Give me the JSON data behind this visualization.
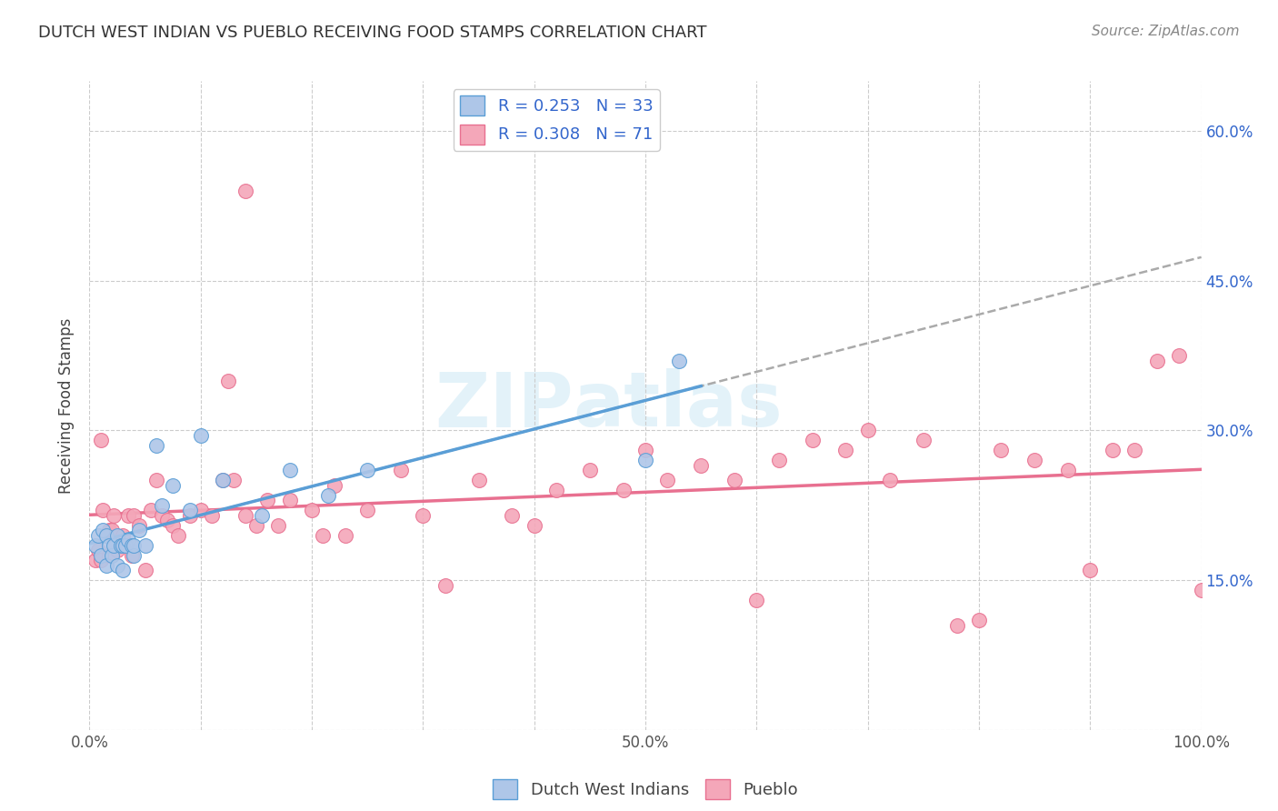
{
  "title": "DUTCH WEST INDIAN VS PUEBLO RECEIVING FOOD STAMPS CORRELATION CHART",
  "source": "Source: ZipAtlas.com",
  "ylabel": "Receiving Food Stamps",
  "color_blue_fill": "#aec6e8",
  "color_blue_edge": "#5a9ed6",
  "color_pink_fill": "#f4a7b9",
  "color_pink_edge": "#e87090",
  "legend_text_color": "#3366cc",
  "legend_r1": "R = 0.253",
  "legend_n1": "N = 33",
  "legend_r2": "R = 0.308",
  "legend_n2": "N = 71",
  "legend_label1": "Dutch West Indians",
  "legend_label2": "Pueblo",
  "grid_color": "#cccccc",
  "blue_x": [
    0.005,
    0.008,
    0.01,
    0.012,
    0.015,
    0.015,
    0.018,
    0.02,
    0.022,
    0.025,
    0.025,
    0.028,
    0.03,
    0.03,
    0.032,
    0.035,
    0.038,
    0.04,
    0.04,
    0.045,
    0.05,
    0.06,
    0.065,
    0.075,
    0.09,
    0.1,
    0.12,
    0.155,
    0.18,
    0.215,
    0.25,
    0.5,
    0.53
  ],
  "blue_y": [
    0.185,
    0.195,
    0.175,
    0.2,
    0.165,
    0.195,
    0.185,
    0.175,
    0.185,
    0.165,
    0.195,
    0.185,
    0.16,
    0.185,
    0.185,
    0.19,
    0.185,
    0.175,
    0.185,
    0.2,
    0.185,
    0.285,
    0.225,
    0.245,
    0.22,
    0.295,
    0.25,
    0.215,
    0.26,
    0.235,
    0.26,
    0.27,
    0.37
  ],
  "pink_x": [
    0.005,
    0.008,
    0.01,
    0.01,
    0.012,
    0.015,
    0.018,
    0.018,
    0.02,
    0.022,
    0.025,
    0.03,
    0.035,
    0.038,
    0.04,
    0.045,
    0.05,
    0.055,
    0.06,
    0.065,
    0.07,
    0.075,
    0.08,
    0.09,
    0.1,
    0.11,
    0.12,
    0.125,
    0.13,
    0.14,
    0.15,
    0.16,
    0.17,
    0.18,
    0.2,
    0.21,
    0.22,
    0.23,
    0.25,
    0.28,
    0.3,
    0.32,
    0.35,
    0.38,
    0.4,
    0.42,
    0.45,
    0.48,
    0.5,
    0.52,
    0.55,
    0.58,
    0.6,
    0.62,
    0.65,
    0.68,
    0.7,
    0.72,
    0.75,
    0.78,
    0.8,
    0.82,
    0.85,
    0.88,
    0.9,
    0.92,
    0.94,
    0.96,
    0.98,
    1.0,
    0.14
  ],
  "pink_y": [
    0.17,
    0.18,
    0.17,
    0.29,
    0.22,
    0.195,
    0.2,
    0.175,
    0.2,
    0.215,
    0.18,
    0.195,
    0.215,
    0.175,
    0.215,
    0.205,
    0.16,
    0.22,
    0.25,
    0.215,
    0.21,
    0.205,
    0.195,
    0.215,
    0.22,
    0.215,
    0.25,
    0.35,
    0.25,
    0.215,
    0.205,
    0.23,
    0.205,
    0.23,
    0.22,
    0.195,
    0.245,
    0.195,
    0.22,
    0.26,
    0.215,
    0.145,
    0.25,
    0.215,
    0.205,
    0.24,
    0.26,
    0.24,
    0.28,
    0.25,
    0.265,
    0.25,
    0.13,
    0.27,
    0.29,
    0.28,
    0.3,
    0.25,
    0.29,
    0.105,
    0.11,
    0.28,
    0.27,
    0.26,
    0.16,
    0.28,
    0.28,
    0.37,
    0.375,
    0.14,
    0.54
  ]
}
